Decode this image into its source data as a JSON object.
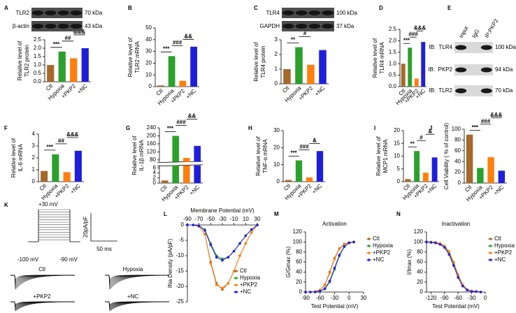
{
  "chart_data": [
    {
      "panel": "A",
      "type": "bar",
      "ylabel": [
        "Relative level of",
        "TLR2 protein"
      ],
      "categories": [
        "Ctl",
        "Hypoxia",
        "+PKP2",
        "+NC"
      ],
      "colors": [
        "#a5692b",
        "#2ca02c",
        "#ff7f0e",
        "#1f1fdb"
      ],
      "values": [
        1,
        1.8,
        1.4,
        2.0
      ],
      "ylim": [
        0,
        2.5
      ],
      "yticks": [
        {
          "value": 0,
          "label": "0.0"
        },
        0.5,
        {
          "value": 1,
          "label": "1.0"
        },
        1.5,
        {
          "value": 2,
          "label": "2.0"
        },
        2.5
      ],
      "annotations": [
        "***",
        "##",
        "&&&"
      ]
    },
    {
      "panel": "B",
      "type": "bar",
      "ylabel": [
        "Relative level of",
        "TLR2 mRNA"
      ],
      "categories": [
        "Ctl",
        "Hypoxia",
        "+PKP2",
        "+NC"
      ],
      "colors": [
        "#a5692b",
        "#2ca02c",
        "#ff7f0e",
        "#1f1fdb"
      ],
      "values": [
        1,
        26,
        5,
        34
      ],
      "ylim": [
        0,
        50
      ],
      "yticks": [
        0,
        10,
        20,
        30,
        40,
        50
      ],
      "annotations": [
        "***",
        "###",
        "&&"
      ]
    },
    {
      "panel": "C",
      "type": "bar",
      "ylabel": [
        "Relative level of",
        "TLR4 protein"
      ],
      "categories": [
        "Ctl",
        "Hypoxia",
        "+PKP2",
        "+NC"
      ],
      "colors": [
        "#a5692b",
        "#2ca02c",
        "#ff7f0e",
        "#1f1fdb"
      ],
      "values": [
        1,
        2.5,
        1.3,
        2.3
      ],
      "ylim": [
        0,
        3
      ],
      "yticks": [
        0,
        1,
        2,
        3
      ],
      "annotations": [
        "**",
        "#",
        "&"
      ]
    },
    {
      "panel": "D",
      "type": "bar",
      "ylabel": [
        "Relative level of",
        "TLR4 mRNA"
      ],
      "categories": [
        "Ctl",
        "Hypoxia",
        "+PKP2",
        "+NC"
      ],
      "colors": [
        "#a5692b",
        "#2ca02c",
        "#ff7f0e",
        "#1f1fdb"
      ],
      "values": [
        1,
        1.7,
        0.35,
        1.95
      ],
      "ylim": [
        0,
        2.5
      ],
      "yticks": [
        {
          "value": 0,
          "label": "0.0"
        },
        0.5,
        {
          "value": 1,
          "label": "1.0"
        },
        1.5,
        {
          "value": 2,
          "label": "2.0"
        },
        2.5
      ],
      "annotations": [
        "***",
        "###",
        "&&&"
      ]
    },
    {
      "panel": "F",
      "type": "bar",
      "ylabel": [
        "Relative level of",
        "IL-6 mRNA"
      ],
      "categories": [
        "Ctl",
        "Hypoxia",
        "+PKP2",
        "+NC"
      ],
      "colors": [
        "#a5692b",
        "#2ca02c",
        "#ff7f0e",
        "#1f1fdb"
      ],
      "values": [
        0.9,
        2.3,
        0.8,
        2.6
      ],
      "ylim": [
        0,
        4
      ],
      "yticks": [
        0,
        1,
        2,
        3,
        4
      ],
      "annotations": [
        "***",
        "##",
        "&&&"
      ]
    },
    {
      "panel": "G",
      "type": "bar",
      "ylabel": [
        "Relative level of",
        "IL-1β mRNA"
      ],
      "categories": [
        "Ctl",
        "Hypoxia",
        "+PKP2",
        "+NC"
      ],
      "colors": [
        "#a5692b",
        "#2ca02c",
        "#ff7f0e",
        "#1f1fdb"
      ],
      "values": [
        1,
        200,
        90,
        150
      ],
      "ysegments": [
        {
          "ylim": [
            0,
            7
          ],
          "yticks": [
            0,
            2,
            4,
            6
          ]
        },
        {
          "ylim": [
            70,
            240
          ],
          "yticks": [
            80,
            120,
            160,
            200,
            240
          ]
        }
      ],
      "annotations": [
        "***",
        "###",
        "&&"
      ]
    },
    {
      "panel": "H",
      "type": "bar",
      "ylabel": [
        "Relative level of",
        "TNF-α mRNA"
      ],
      "categories": [
        "Ctl",
        "Hypoxia",
        "+PKP2",
        "+NC"
      ],
      "colors": [
        "#a5692b",
        "#2ca02c",
        "#ff7f0e",
        "#1f1fdb"
      ],
      "values": [
        1,
        12.5,
        2.5,
        18
      ],
      "ylim": [
        0,
        30
      ],
      "yticks": [
        0,
        10,
        20,
        30
      ],
      "annotations": [
        "***",
        "###",
        "&"
      ]
    },
    {
      "panel": "I",
      "type": "bar",
      "ylabel": [
        "Relative level of",
        "MCP1 mRNA"
      ],
      "categories": [
        "Ctl",
        "Hypoxia",
        "+PKP2",
        "+NC"
      ],
      "colors": [
        "#a5692b",
        "#2ca02c",
        "#ff7f0e",
        "#1f1fdb"
      ],
      "values": [
        1,
        12,
        3.5,
        9.5
      ],
      "ylim": [
        0,
        20
      ],
      "yticks": [
        0,
        5,
        10,
        15,
        20
      ],
      "annotations": [
        "**",
        "#",
        "&"
      ]
    },
    {
      "panel": "J",
      "type": "bar",
      "ylabel": [
        "Cell Viability ( % of control)"
      ],
      "categories": [
        "Ctl",
        "Hypoxia",
        "+PKP2",
        "+NC"
      ],
      "colors": [
        "#a5692b",
        "#2ca02c",
        "#ff7f0e",
        "#1f1fdb"
      ],
      "values": [
        90,
        28,
        48,
        23
      ],
      "ylim": [
        0,
        100
      ],
      "yticks": [
        0,
        20,
        40,
        60,
        80,
        100
      ],
      "annotations": [
        "***",
        "###",
        "&&&"
      ]
    },
    {
      "panel": "L",
      "type": "line",
      "xlabel": "Membrane Potential (mV)",
      "ylabel": "INa Density (pA/pF)",
      "x_axis_position": "top",
      "legend": "lower-right",
      "x": [
        -90,
        -80,
        -70,
        -60,
        -50,
        -40,
        -30,
        -20,
        -10,
        0,
        10,
        20,
        30
      ],
      "xlim": [
        -90,
        30
      ],
      "xticks": [
        -90,
        -70,
        -50,
        -30,
        -10,
        10,
        30
      ],
      "ylim": [
        -25,
        0
      ],
      "yticks": [
        0,
        -5,
        -10,
        -15,
        -20,
        -25
      ],
      "series": [
        {
          "name": "Ctl",
          "color": "#a5692b",
          "values": [
            0,
            0,
            -0.5,
            -3,
            -12,
            -19,
            -21,
            -19,
            -15,
            -10,
            -6,
            -2.5,
            0
          ]
        },
        {
          "name": "Hypoxia",
          "color": "#2ca02c",
          "values": [
            0,
            0,
            -0.3,
            -1.5,
            -6,
            -10,
            -11,
            -10.5,
            -8.5,
            -6,
            -3.5,
            -1.5,
            0
          ]
        },
        {
          "name": "+PKP2",
          "color": "#ff7f0e",
          "values": [
            0,
            0,
            -0.5,
            -3,
            -12.5,
            -19.5,
            -20.5,
            -19,
            -15,
            -10,
            -6,
            -2.5,
            0
          ]
        },
        {
          "name": "+NC",
          "color": "#1f1fdb",
          "values": [
            0,
            0,
            -0.3,
            -1.8,
            -6.5,
            -10.5,
            -11.5,
            -10.5,
            -8.5,
            -6,
            -3.5,
            -1.5,
            0
          ]
        }
      ]
    },
    {
      "panel": "M",
      "type": "line",
      "title": "Activation",
      "xlabel": "Test Potential (mV)",
      "ylabel": "G/Gmax (%)",
      "legend": "right",
      "x": [
        -90,
        -80,
        -70,
        -60,
        -50,
        -40,
        -30,
        -20,
        -10,
        0,
        10
      ],
      "xlim": [
        -90,
        30
      ],
      "xticks": [
        -90,
        -60,
        -30,
        0,
        30
      ],
      "ylim": [
        0,
        120
      ],
      "yticks": [
        0,
        20,
        40,
        60,
        80,
        100,
        120
      ],
      "series": [
        {
          "name": "Ctl",
          "color": "#a5692b",
          "values": [
            0,
            0,
            1,
            4,
            15,
            40,
            68,
            87,
            96,
            99,
            100
          ]
        },
        {
          "name": "Hypoxia",
          "color": "#2ca02c",
          "values": [
            0,
            0,
            0,
            2,
            6,
            20,
            45,
            72,
            90,
            98,
            100
          ]
        },
        {
          "name": "+PKP2",
          "color": "#ff7f0e",
          "values": [
            0,
            0,
            1,
            4,
            14,
            38,
            66,
            86,
            95,
            99,
            100
          ]
        },
        {
          "name": "+NC",
          "color": "#1f1fdb",
          "values": [
            0,
            0,
            0,
            2,
            7,
            22,
            48,
            74,
            91,
            98,
            100
          ]
        }
      ]
    },
    {
      "panel": "N",
      "type": "line",
      "title": "Inactivation",
      "xlabel": "Test Potential (mV)",
      "ylabel": "I/Imax (%)",
      "legend": "right",
      "x": [
        -130,
        -120,
        -110,
        -100,
        -90,
        -80,
        -70,
        -60,
        -50,
        -40,
        -30,
        -20,
        -10
      ],
      "xlim": [
        -130,
        0
      ],
      "xticks": [
        -120,
        -90,
        -60,
        -30,
        0
      ],
      "ylim": [
        0,
        120
      ],
      "yticks": [
        0,
        20,
        40,
        60,
        80,
        100,
        120
      ],
      "series": [
        {
          "name": "Ctl",
          "color": "#a5692b",
          "values": [
            100,
            100,
            99,
            97,
            92,
            80,
            58,
            33,
            14,
            5,
            2,
            1,
            0
          ]
        },
        {
          "name": "Hypoxia",
          "color": "#2ca02c",
          "values": [
            100,
            100,
            99,
            96,
            90,
            77,
            55,
            30,
            12,
            4,
            2,
            1,
            0
          ]
        },
        {
          "name": "+PKP2",
          "color": "#ff7f0e",
          "values": [
            100,
            100,
            99,
            97,
            92,
            81,
            60,
            35,
            15,
            5,
            2,
            1,
            0
          ]
        },
        {
          "name": "+NC",
          "color": "#1f1fdb",
          "values": [
            100,
            99,
            98,
            95,
            89,
            75,
            53,
            29,
            12,
            4,
            1,
            1,
            0
          ]
        }
      ]
    }
  ],
  "blots": [
    {
      "rows": [
        {
          "label": "TLR2",
          "size": "70 kDa"
        },
        {
          "label": "β-actin",
          "size": "43 kDa"
        }
      ]
    },
    {
      "rows": [
        {
          "label": "TLR4",
          "size": "100 kDa"
        },
        {
          "label": "GAPDH",
          "size": "37 kDa"
        }
      ]
    }
  ],
  "ip_blot": {
    "panel": "E",
    "lanes": [
      "Input",
      "IgG",
      "IP:PKP2"
    ],
    "rows": [
      {
        "label": "IB:  TLR4",
        "size": "100 kDa"
      },
      {
        "label": "IB:  PKP2",
        "size": "94 kDa"
      },
      {
        "label": "IB:  TLR2",
        "size": "70 kDa"
      }
    ]
  },
  "patch_clamp": {
    "panel": "K",
    "step_top": "+30 mV",
    "holding": "-100 mV",
    "step_bottom": "-90 mV",
    "scale_current": "20pA/pF",
    "scale_time": "50 ms",
    "traces": [
      "Ctl",
      "Hypoxia",
      "+PKP2",
      "+NC"
    ]
  }
}
